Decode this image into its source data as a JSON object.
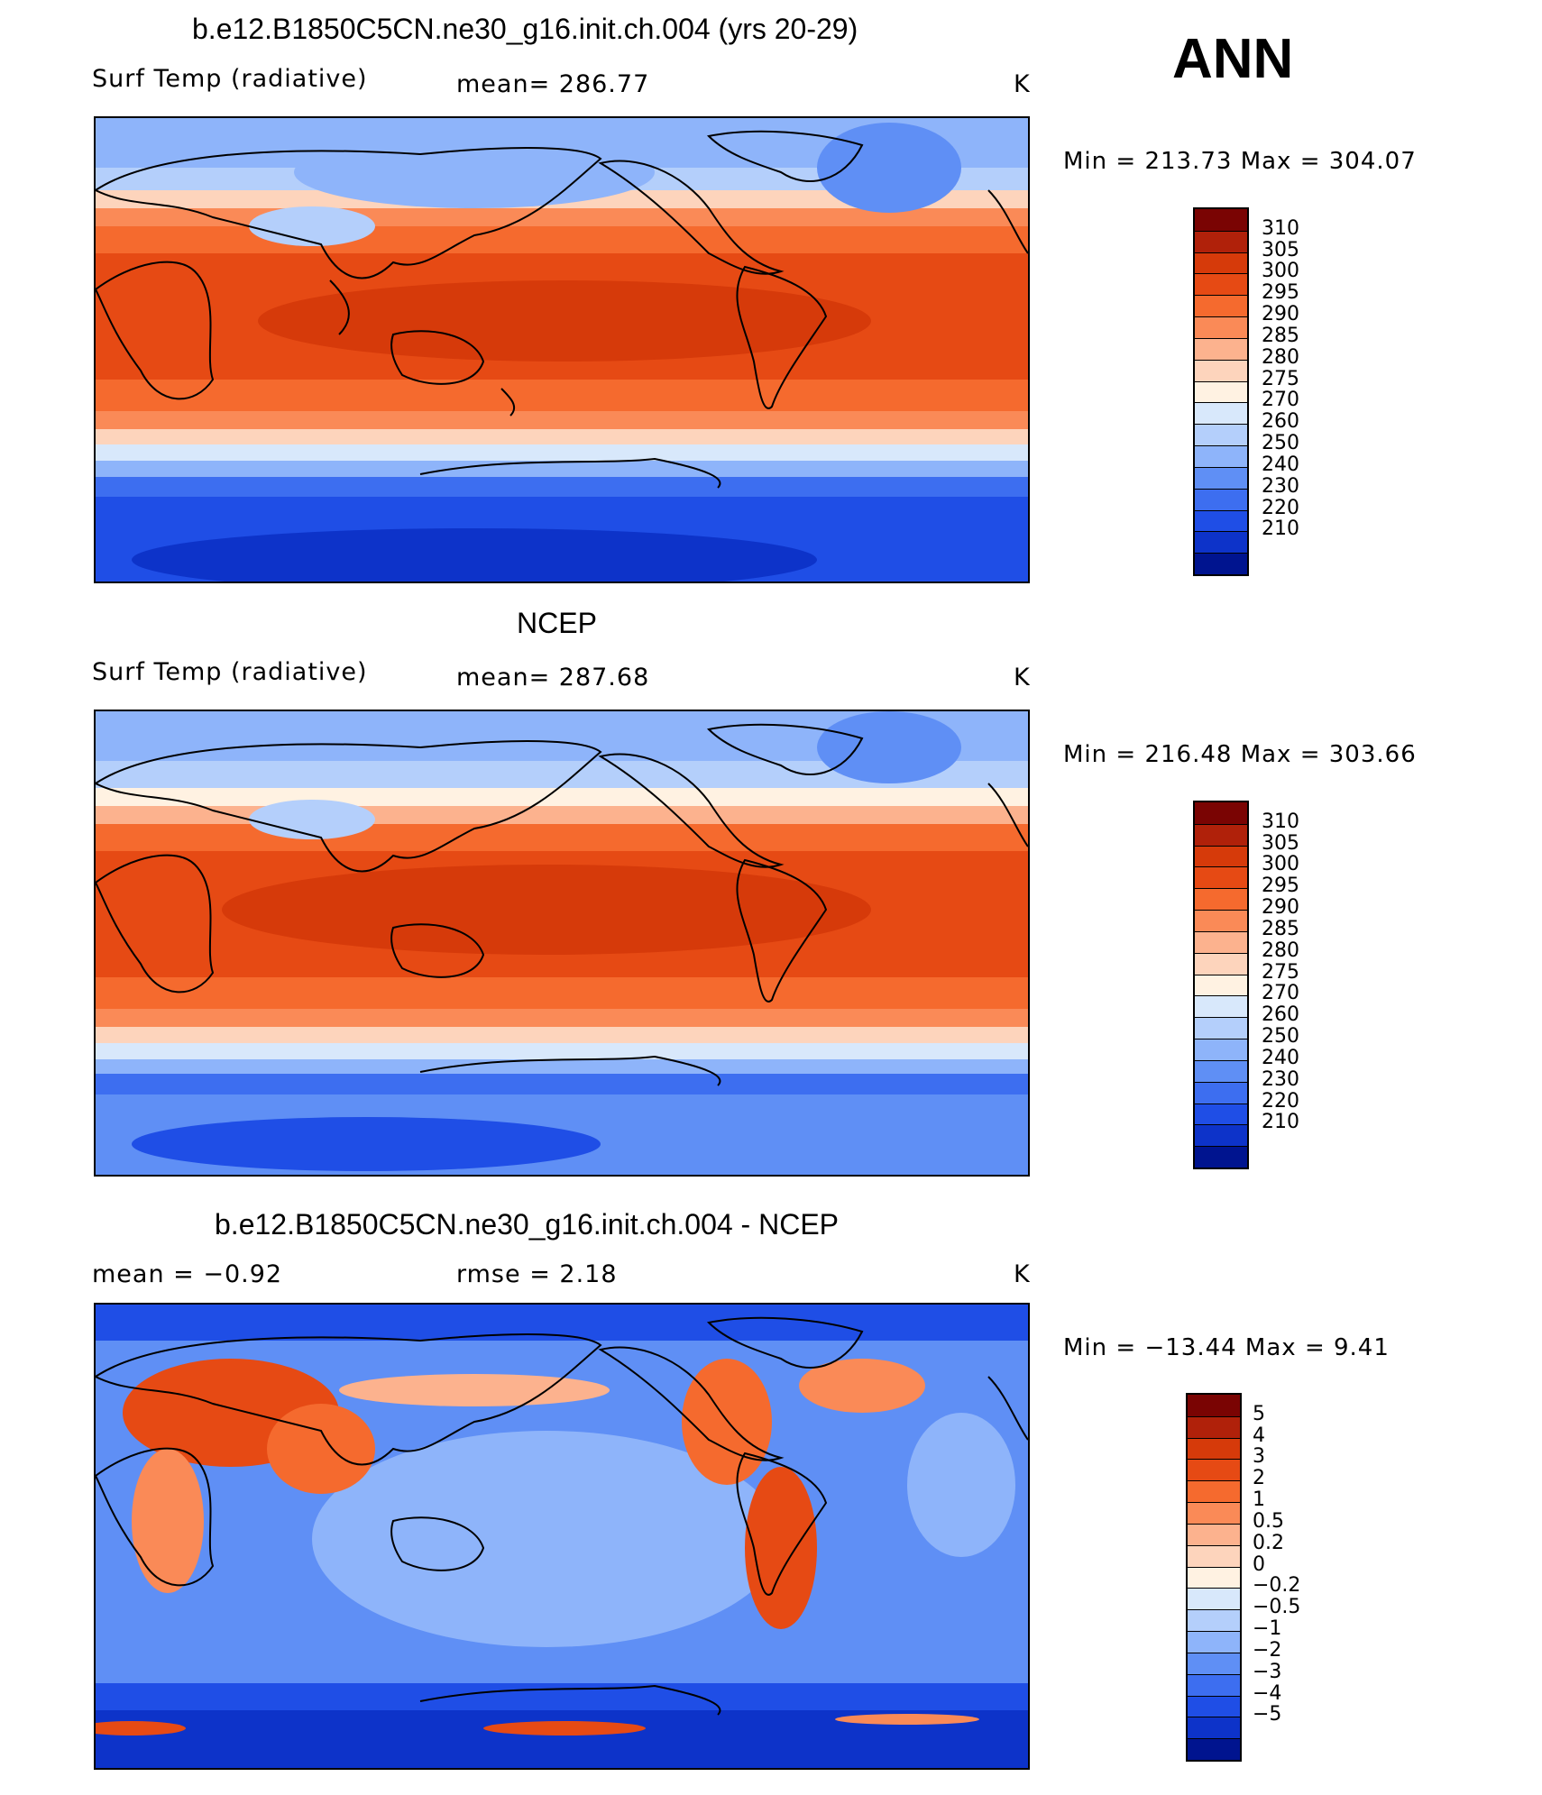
{
  "season": "ANN",
  "units": "K",
  "panels": [
    {
      "title": "b.e12.B1850C5CN.ne30_g16.init.ch.004 (yrs 20-29)",
      "variable": "Surf Temp (radiative)",
      "stat": "mean=  286.77",
      "units": "K",
      "minmax": "Min  =  213.73  Max  =  304.07",
      "map_kind": "model"
    },
    {
      "title": "NCEP",
      "variable": "Surf Temp (radiative)",
      "stat": "mean=  287.68",
      "units": "K",
      "minmax": "Min  =  216.48  Max  =  303.66",
      "map_kind": "obs"
    },
    {
      "title": "b.e12.B1850C5CN.ne30_g16.init.ch.004 - NCEP",
      "variable": "mean  =     −0.92",
      "stat": "rmse  =     2.18",
      "units": "K",
      "minmax": "Min  =  −13.44  Max  =      9.41",
      "map_kind": "diff"
    }
  ],
  "colorbars": {
    "temperature": {
      "labels": [
        "310",
        "305",
        "300",
        "295",
        "290",
        "285",
        "280",
        "275",
        "270",
        "260",
        "250",
        "240",
        "230",
        "220",
        "210"
      ],
      "colors": [
        "#7a0403",
        "#b0210a",
        "#d63a0a",
        "#e64a14",
        "#f56a2e",
        "#fa8a57",
        "#fcb28e",
        "#fdd4bc",
        "#fff2e2",
        "#d8e8fb",
        "#b4cffb",
        "#8eb4fa",
        "#5f8ff5",
        "#3d6ef0",
        "#1f4ee6",
        "#0d33c9",
        "#00148f"
      ]
    },
    "difference": {
      "labels": [
        "5",
        "4",
        "3",
        "2",
        "1",
        "0.5",
        "0.2",
        "0",
        "−0.2",
        "−0.5",
        "−1",
        "−2",
        "−3",
        "−4",
        "−5"
      ],
      "colors": [
        "#7a0403",
        "#b0210a",
        "#d63a0a",
        "#e64a14",
        "#f56a2e",
        "#fa8a57",
        "#fcb28e",
        "#fdd4bc",
        "#fff2e2",
        "#d8e8fb",
        "#b4cffb",
        "#8eb4fa",
        "#5f8ff5",
        "#3d6ef0",
        "#1f4ee6",
        "#0d33c9",
        "#00148f"
      ]
    }
  }
}
